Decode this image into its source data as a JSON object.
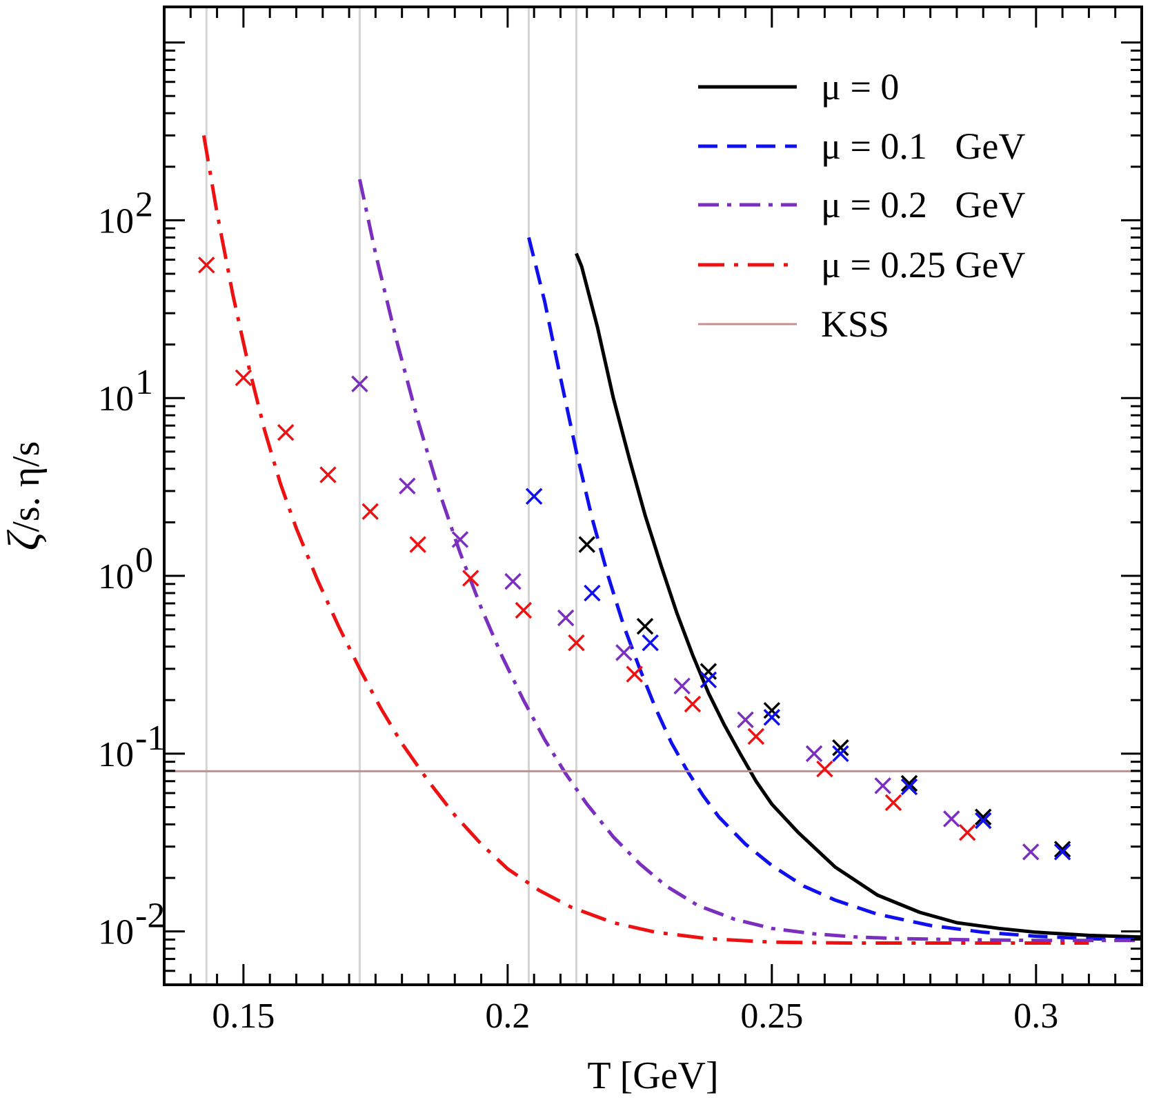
{
  "chart_data": {
    "type": "line",
    "title": "",
    "xlabel": "T [GeV]",
    "ylabel_parts": [
      "ζ",
      "/s. η/s"
    ],
    "xlim": [
      0.135,
      0.32
    ],
    "ylim_log10": [
      -2.3,
      3.2
    ],
    "x_ticks": [
      0.15,
      0.2,
      0.25,
      0.3
    ],
    "x_tick_labels": [
      "0.15",
      "0.2",
      "0.25",
      "0.3"
    ],
    "y_decades": [
      {
        "value": 0.01,
        "base": "10",
        "exp": "-2"
      },
      {
        "value": 0.1,
        "base": "10",
        "exp": "-1"
      },
      {
        "value": 1,
        "base": "10",
        "exp": "0"
      },
      {
        "value": 10,
        "base": "10",
        "exp": "1"
      },
      {
        "value": 100,
        "base": "10",
        "exp": "2"
      }
    ],
    "vertical_reference_lines": [
      0.143,
      0.172,
      0.204,
      0.213
    ],
    "legend_position": "top-right",
    "series": [
      {
        "name": "μ = 0",
        "color": "#000000",
        "style": "solid",
        "x": [
          0.213,
          0.214,
          0.217,
          0.22,
          0.223,
          0.226,
          0.229,
          0.232,
          0.235,
          0.238,
          0.241,
          0.244,
          0.247,
          0.25,
          0.255,
          0.262,
          0.27,
          0.278,
          0.285,
          0.293,
          0.3,
          0.31,
          0.32
        ],
        "y": [
          65,
          55,
          25,
          10,
          4.6,
          2.2,
          1.15,
          0.62,
          0.36,
          0.22,
          0.145,
          0.1,
          0.07,
          0.052,
          0.036,
          0.023,
          0.016,
          0.0128,
          0.0112,
          0.0104,
          0.0099,
          0.0095,
          0.0093
        ]
      },
      {
        "name": "μ = 0.1   GeV",
        "color": "#1010ee",
        "style": "dashed",
        "x": [
          0.204,
          0.207,
          0.21,
          0.213,
          0.216,
          0.219,
          0.222,
          0.225,
          0.228,
          0.231,
          0.234,
          0.237,
          0.24,
          0.245,
          0.25,
          0.256,
          0.262,
          0.27,
          0.28,
          0.29,
          0.3,
          0.31,
          0.32
        ],
        "y": [
          80,
          35,
          13,
          5,
          2.1,
          1.0,
          0.52,
          0.3,
          0.18,
          0.115,
          0.08,
          0.058,
          0.044,
          0.031,
          0.0235,
          0.018,
          0.015,
          0.0125,
          0.0108,
          0.0099,
          0.0094,
          0.0091,
          0.009
        ]
      },
      {
        "name": "μ = 0.2   GeV",
        "color": "#7a2fbf",
        "style": "dashdot",
        "x": [
          0.172,
          0.175,
          0.179,
          0.183,
          0.187,
          0.191,
          0.195,
          0.199,
          0.203,
          0.207,
          0.211,
          0.215,
          0.22,
          0.225,
          0.23,
          0.236,
          0.243,
          0.25,
          0.258,
          0.266,
          0.275,
          0.285,
          0.3,
          0.32
        ],
        "y": [
          170,
          65,
          21,
          7.5,
          3.0,
          1.35,
          0.66,
          0.35,
          0.2,
          0.12,
          0.077,
          0.052,
          0.034,
          0.024,
          0.018,
          0.014,
          0.0117,
          0.0104,
          0.0097,
          0.0093,
          0.0091,
          0.009,
          0.0089,
          0.0089
        ]
      },
      {
        "name": "μ = 0.25 GeV",
        "color": "#ee1111",
        "style": "dashdot2",
        "x": [
          0.1425,
          0.145,
          0.148,
          0.151,
          0.154,
          0.157,
          0.16,
          0.164,
          0.168,
          0.172,
          0.176,
          0.18,
          0.185,
          0.19,
          0.195,
          0.2,
          0.206,
          0.212,
          0.22,
          0.228,
          0.238,
          0.25,
          0.265,
          0.285,
          0.31
        ],
        "y": [
          300,
          110,
          38,
          15,
          6.6,
          3.3,
          1.85,
          0.95,
          0.52,
          0.3,
          0.18,
          0.114,
          0.07,
          0.045,
          0.031,
          0.0225,
          0.017,
          0.0137,
          0.0112,
          0.0099,
          0.0091,
          0.0087,
          0.0086,
          0.0086,
          0.0086
        ]
      },
      {
        "name": "KSS",
        "color": "#c09090",
        "style": "solid-thin",
        "x": [
          0.135,
          0.32
        ],
        "y": [
          0.0796,
          0.0796
        ]
      }
    ],
    "markers": [
      {
        "name": "μ = 0 points",
        "color": "#000000",
        "x": [
          0.215,
          0.226,
          0.238,
          0.25,
          0.263,
          0.276,
          0.29,
          0.305
        ],
        "y": [
          1.5,
          0.52,
          0.29,
          0.175,
          0.108,
          0.068,
          0.044,
          0.029
        ]
      },
      {
        "name": "μ = 0.1 GeV points",
        "color": "#1010ee",
        "x": [
          0.205,
          0.216,
          0.227,
          0.238,
          0.25,
          0.263,
          0.276,
          0.29,
          0.305
        ],
        "y": [
          2.8,
          0.8,
          0.42,
          0.26,
          0.16,
          0.1,
          0.065,
          0.042,
          0.028
        ]
      },
      {
        "name": "μ = 0.2 GeV points",
        "color": "#7a2fbf",
        "x": [
          0.172,
          0.181,
          0.191,
          0.201,
          0.211,
          0.222,
          0.233,
          0.245,
          0.258,
          0.271,
          0.284,
          0.299
        ],
        "y": [
          12,
          3.2,
          1.6,
          0.93,
          0.58,
          0.37,
          0.24,
          0.155,
          0.1,
          0.066,
          0.043,
          0.028
        ]
      },
      {
        "name": "μ = 0.25 GeV points",
        "color": "#ee1111",
        "x": [
          0.143,
          0.15,
          0.158,
          0.166,
          0.174,
          0.183,
          0.193,
          0.203,
          0.213,
          0.224,
          0.235,
          0.247,
          0.26,
          0.273,
          0.287
        ],
        "y": [
          56,
          13,
          6.4,
          3.7,
          2.3,
          1.5,
          0.97,
          0.64,
          0.42,
          0.28,
          0.19,
          0.125,
          0.082,
          0.053,
          0.036
        ]
      }
    ]
  }
}
